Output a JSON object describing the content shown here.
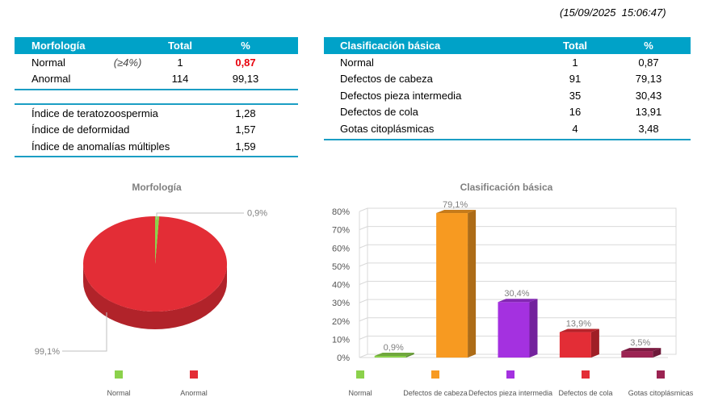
{
  "timestamp": "(15/09/2025  15:06:47)",
  "morphology_table": {
    "headers": {
      "label": "Morfología",
      "total": "Total",
      "pct": "%"
    },
    "rows": [
      {
        "label": "Normal",
        "note": "(≥4%)",
        "total": "1",
        "pct": "0,87"
      },
      {
        "label": "Anormal",
        "note": "",
        "total": "114",
        "pct": "99,13"
      }
    ]
  },
  "indices_table": {
    "rows": [
      {
        "label": "Índice de teratozoospermia",
        "value": "1,28"
      },
      {
        "label": "Índice de deformidad",
        "value": "1,57"
      },
      {
        "label": "Índice de anomalías múltiples",
        "value": "1,59"
      }
    ]
  },
  "classification_table": {
    "headers": {
      "label": "Clasificación básica",
      "total": "Total",
      "pct": "%"
    },
    "rows": [
      {
        "label": "Normal",
        "total": "1",
        "pct": "0,87"
      },
      {
        "label": "Defectos de cabeza",
        "total": "91",
        "pct": "79,13"
      },
      {
        "label": "Defectos pieza intermedia",
        "total": "35",
        "pct": "30,43"
      },
      {
        "label": "Defectos de cola",
        "total": "16",
        "pct": "13,91"
      },
      {
        "label": "Gotas citoplásmicas",
        "total": "4",
        "pct": "3,48"
      }
    ]
  },
  "colors": {
    "header_bg": "#00a2c8",
    "normal": "#8bd14b",
    "anormal": "#e32d36",
    "head": "#f79a21",
    "midpiece": "#a431e0",
    "tail": "#e32d36",
    "droplets": "#9b2352",
    "highlight": "#e8000b"
  },
  "chart_data": [
    {
      "type": "pie",
      "title": "Morfología",
      "slices": [
        {
          "label": "Normal",
          "value": 0.9,
          "data_label": "0,9%",
          "color": "#8bd14b"
        },
        {
          "label": "Anormal",
          "value": 99.1,
          "data_label": "99,1%",
          "color": "#e32d36"
        }
      ],
      "legend": "bottom"
    },
    {
      "type": "bar",
      "title": "Clasificación básica",
      "categories": [
        "Normal",
        "Defectos de cabeza",
        "Defectos pieza intermedia",
        "Defectos de cola",
        "Gotas citoplásmicas"
      ],
      "values": [
        0.9,
        79.1,
        30.4,
        13.9,
        3.5
      ],
      "data_labels": [
        "0,9%",
        "79,1%",
        "30,4%",
        "13,9%",
        "3,5%"
      ],
      "colors": [
        "#8bd14b",
        "#f79a21",
        "#a431e0",
        "#e32d36",
        "#9b2352"
      ],
      "yticks": [
        "0%",
        "10%",
        "20%",
        "30%",
        "40%",
        "50%",
        "60%",
        "70%",
        "80%"
      ],
      "ylim": [
        0,
        80
      ],
      "grid": true,
      "legend": "bottom"
    }
  ]
}
